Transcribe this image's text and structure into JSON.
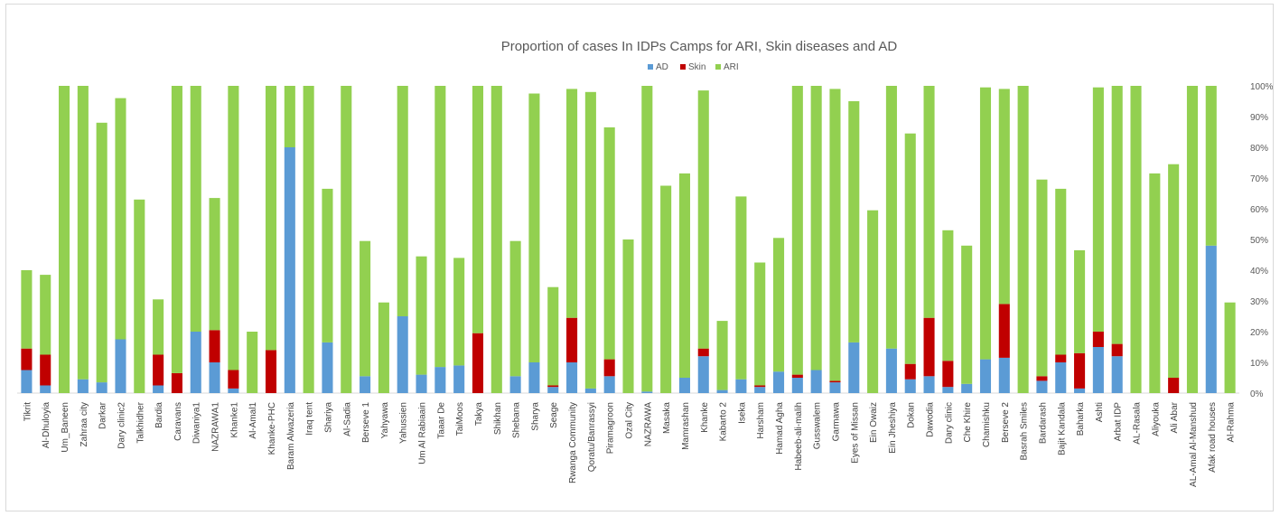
{
  "chart_data": {
    "type": "bar",
    "stacked": true,
    "title": "Proportion of cases In IDPs Camps for ARI, Skin diseases and AD",
    "legend_position": "top",
    "y_axis_position": "right",
    "grid": false,
    "ylim": [
      0,
      1
    ],
    "y_ticks": [
      "0%",
      "10%",
      "20%",
      "30%",
      "40%",
      "50%",
      "60%",
      "70%",
      "80%",
      "90%",
      "100%"
    ],
    "categories": [
      "Tikrit",
      "Al-Dhuloyia",
      "Um_Baneen",
      "Zahraa city",
      "Darkar",
      "Dary clinic2",
      "Talkhidher",
      "Bardia",
      "Caravans",
      "Diwaniya1",
      "NAZRAWA1",
      "Khanke1",
      "Al-Amal1",
      "Khanke-PHC",
      "Baram Alwazeria",
      "Iraq tent",
      "Shariya",
      "Al-Sadia",
      "Berseve 1",
      "Yahyawa",
      "Yahussien",
      "Um Al Rabiaain",
      "Taaar De",
      "TaiMoos",
      "Takya",
      "Shikhan",
      "Shebana",
      "Sharya",
      "Seage",
      "Rwanga Community",
      "Qoratu/Banrassyi",
      "Piramagroon",
      "Ozal City",
      "NAZRAWA",
      "Masaka",
      "Mamrashan",
      "Khanke",
      "Kabarto 2",
      "Iseka",
      "Harsham",
      "Hamad Agha",
      "Habeeb-ali-malih",
      "Gusswalem",
      "Garmawa",
      "Eyes of Missan",
      "Ein Owaiz",
      "Ein Jheshiya",
      "Dokan",
      "Dawodia",
      "Dary clinic",
      "Che Khire",
      "Chamishku",
      "Berseve 2",
      "Basrah Smiles",
      "Bardarash",
      "Bajit Kandala",
      "Baharka",
      "Ashti",
      "Arbat IDP",
      "AL-Rasala",
      "Aliyouka",
      "Ali Abar",
      "AL-Amal Al-Manshud",
      "Afak road houses",
      "Al-Rahma"
    ],
    "series": [
      {
        "name": "AD",
        "color": "#5b9bd5",
        "values": [
          0.075,
          0.025,
          0,
          0.045,
          0.035,
          0.175,
          0,
          0.025,
          0,
          0.2,
          0.1,
          0.015,
          0,
          0,
          0.8,
          0,
          0.165,
          0,
          0.055,
          0,
          0.25,
          0.06,
          0.085,
          0.09,
          0,
          0,
          0.055,
          0.1,
          0.02,
          0.1,
          0.015,
          0.055,
          0,
          0.005,
          0,
          0.05,
          0.12,
          0.01,
          0.045,
          0.02,
          0.07,
          0.05,
          0.075,
          0.035,
          0.165,
          0,
          0.145,
          0.045,
          0.055,
          0.02,
          0.03,
          0.11,
          0.115,
          0,
          0.04,
          0.1,
          0.015,
          0.15,
          0.12,
          0,
          0,
          0,
          0,
          0.48,
          0
        ]
      },
      {
        "name": "Skin",
        "color": "#c00000",
        "values": [
          0.07,
          0.1,
          0,
          0,
          0,
          0,
          0,
          0.1,
          0.065,
          0,
          0.105,
          0.06,
          0,
          0.14,
          0,
          0,
          0,
          0,
          0,
          0,
          0,
          0,
          0,
          0,
          0.195,
          0,
          0,
          0,
          0.005,
          0.145,
          0,
          0.055,
          0,
          0,
          0,
          0,
          0.025,
          0,
          0,
          0.005,
          0,
          0.01,
          0,
          0.005,
          0,
          0,
          0,
          0.05,
          0.19,
          0.085,
          0,
          0,
          0.175,
          0,
          0.015,
          0.025,
          0.115,
          0.05,
          0.04,
          0,
          0,
          0.05,
          0,
          0,
          0
        ]
      },
      {
        "name": "ARI",
        "color": "#92d050",
        "values": [
          0.255,
          0.26,
          1.0,
          0.955,
          0.845,
          0.785,
          0.63,
          0.18,
          0.935,
          0.8,
          0.43,
          0.925,
          0.2,
          0.86,
          0.2,
          1.0,
          0.5,
          1.0,
          0.44,
          0.295,
          0.75,
          0.385,
          0.915,
          0.35,
          0.805,
          1.0,
          0.44,
          0.875,
          0.32,
          0.745,
          0.965,
          0.755,
          0.5,
          0.995,
          0.675,
          0.665,
          0.84,
          0.225,
          0.595,
          0.4,
          0.435,
          0.94,
          0.925,
          0.95,
          0.785,
          0.595,
          0.855,
          0.75,
          0.755,
          0.425,
          0.45,
          0.885,
          0.7,
          1.0,
          0.64,
          0.54,
          0.335,
          0.795,
          0.84,
          1.0,
          0.715,
          0.695,
          1.0,
          0.52,
          0.295
        ]
      }
    ]
  }
}
